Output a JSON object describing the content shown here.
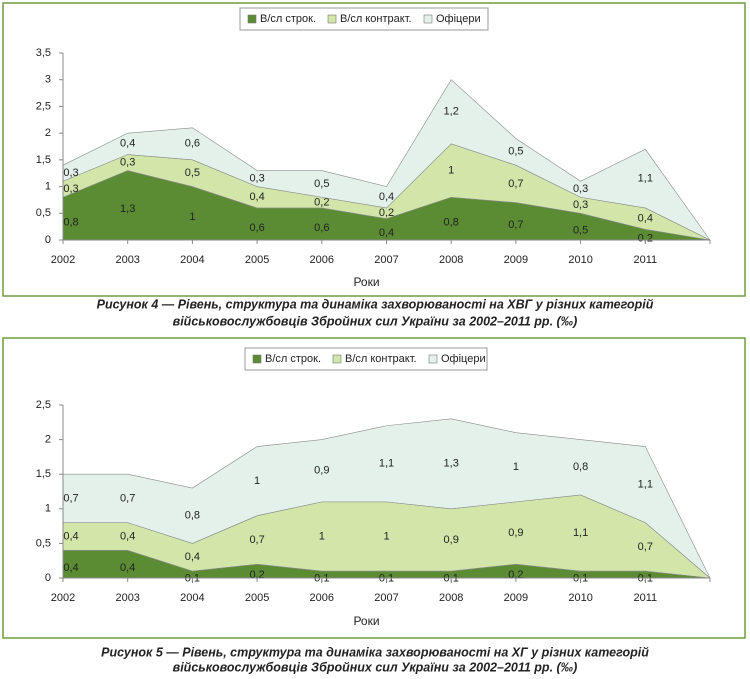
{
  "chart_data": [
    {
      "type": "area",
      "stacked": true,
      "x_label": "Роки",
      "caption": [
        "Рисунок 4 — Рівень, структура та динаміка захворюваності на ХВГ у різних категорій",
        "військовослужбовців Збройних сил України за 2002–2011 рр. (‰)"
      ],
      "categories": [
        "2002",
        "2003",
        "2004",
        "2005",
        "2006",
        "2007",
        "2008",
        "2009",
        "2010",
        "2011",
        null
      ],
      "ylim": [
        0,
        3.5
      ],
      "yticks": [
        0,
        {
          "value": 0.5,
          "label": "0,5"
        },
        1,
        {
          "value": 1.5,
          "label": "1,5"
        },
        2,
        {
          "value": 2.5,
          "label": "2,5"
        },
        3,
        {
          "value": 3.5,
          "label": "3,5"
        }
      ],
      "grid": false,
      "series": [
        {
          "name": "В/сл строк.",
          "color": "#5b8c33",
          "values": [
            0.8,
            1.3,
            1,
            0.6,
            0.6,
            0.4,
            0.8,
            0.7,
            0.5,
            0.2,
            0
          ],
          "value_labels": [
            "0,8",
            "1,3",
            "1",
            "0,6",
            "0,6",
            "0,4",
            "0,8",
            "0,7",
            "0,5",
            "0,2",
            null
          ]
        },
        {
          "name": "В/сл контракт.",
          "color": "#d3e6aa",
          "values": [
            0.3,
            0.3,
            0.5,
            0.4,
            0.2,
            0.2,
            1,
            0.7,
            0.3,
            0.4,
            0
          ],
          "value_labels": [
            "0,3",
            "0,3",
            "0,5",
            "0,4",
            "0,2",
            "0,2",
            "1",
            "0,7",
            "0,3",
            "0,4",
            null
          ]
        },
        {
          "name": "Офіцери",
          "color": "#e4f1ea",
          "values": [
            0.3,
            0.4,
            0.6,
            0.3,
            0.5,
            0.4,
            1.2,
            0.5,
            0.3,
            1.1,
            0
          ],
          "value_labels": [
            "0,3",
            "0,4",
            "0,6",
            "0,3",
            "0,5",
            "0,4",
            "1,2",
            "0,5",
            "0,3",
            "1,1",
            null
          ]
        }
      ]
    },
    {
      "type": "area",
      "stacked": true,
      "x_label": "Роки",
      "caption": [
        "Рисунок 5 — Рівень, структура та динаміка захворюваності на ХГ у різних категорій",
        "військовослужбовців Збройних сил України за 2002–2011 рр. (‰)"
      ],
      "categories": [
        "2002",
        "2003",
        "2004",
        "2005",
        "2006",
        "2007",
        "2008",
        "2009",
        "2010",
        "2011",
        null
      ],
      "ylim": [
        0,
        2.5
      ],
      "yticks": [
        0,
        {
          "value": 0.5,
          "label": "0,5"
        },
        1,
        {
          "value": 1.5,
          "label": "1,5"
        },
        2,
        {
          "value": 2.5,
          "label": "2,5"
        }
      ],
      "grid": false,
      "series": [
        {
          "name": "В/сл строк.",
          "color": "#5b8c33",
          "values": [
            0.4,
            0.4,
            0.1,
            0.2,
            0.1,
            0.1,
            0.1,
            0.2,
            0.1,
            0.1,
            0
          ],
          "value_labels": [
            "0,4",
            "0,4",
            "0,1",
            "0,2",
            "0,1",
            "0,1",
            "0,1",
            "0,2",
            "0,1",
            "0,1",
            null
          ]
        },
        {
          "name": "В/сл контракт.",
          "color": "#d3e6aa",
          "values": [
            0.4,
            0.4,
            0.4,
            0.7,
            1,
            1,
            0.9,
            0.9,
            1.1,
            0.7,
            0
          ],
          "value_labels": [
            "0,4",
            "0,4",
            "0,4",
            "0,7",
            "1",
            "1",
            "0,9",
            "0,9",
            "1,1",
            "0,7",
            null
          ]
        },
        {
          "name": "Офіцери",
          "color": "#e4f1ea",
          "values": [
            0.7,
            0.7,
            0.8,
            1,
            0.9,
            1.1,
            1.3,
            1,
            0.8,
            1.1,
            0
          ],
          "value_labels": [
            "0,7",
            "0,7",
            "0,8",
            "1",
            "0,9",
            "1,1",
            "1,3",
            "1",
            "0,8",
            "1,1",
            null
          ]
        }
      ]
    }
  ]
}
